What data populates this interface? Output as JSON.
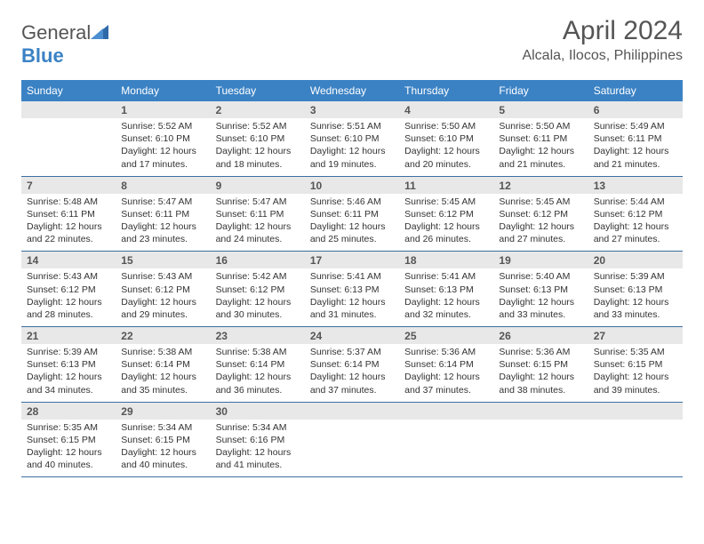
{
  "logo": {
    "text1": "General",
    "text2": "Blue"
  },
  "title": "April 2024",
  "location": "Alcala, Ilocos, Philippines",
  "day_names": [
    "Sunday",
    "Monday",
    "Tuesday",
    "Wednesday",
    "Thursday",
    "Friday",
    "Saturday"
  ],
  "colors": {
    "header_bg": "#3b82c4",
    "header_text": "#ffffff",
    "daynum_bg": "#e8e8e8",
    "border": "#3b6fa0",
    "text": "#333333",
    "title_text": "#555555"
  },
  "weeks": [
    [
      {
        "n": "",
        "sr": "",
        "ss": "",
        "dl": ""
      },
      {
        "n": "1",
        "sr": "Sunrise: 5:52 AM",
        "ss": "Sunset: 6:10 PM",
        "dl": "Daylight: 12 hours and 17 minutes."
      },
      {
        "n": "2",
        "sr": "Sunrise: 5:52 AM",
        "ss": "Sunset: 6:10 PM",
        "dl": "Daylight: 12 hours and 18 minutes."
      },
      {
        "n": "3",
        "sr": "Sunrise: 5:51 AM",
        "ss": "Sunset: 6:10 PM",
        "dl": "Daylight: 12 hours and 19 minutes."
      },
      {
        "n": "4",
        "sr": "Sunrise: 5:50 AM",
        "ss": "Sunset: 6:10 PM",
        "dl": "Daylight: 12 hours and 20 minutes."
      },
      {
        "n": "5",
        "sr": "Sunrise: 5:50 AM",
        "ss": "Sunset: 6:11 PM",
        "dl": "Daylight: 12 hours and 21 minutes."
      },
      {
        "n": "6",
        "sr": "Sunrise: 5:49 AM",
        "ss": "Sunset: 6:11 PM",
        "dl": "Daylight: 12 hours and 21 minutes."
      }
    ],
    [
      {
        "n": "7",
        "sr": "Sunrise: 5:48 AM",
        "ss": "Sunset: 6:11 PM",
        "dl": "Daylight: 12 hours and 22 minutes."
      },
      {
        "n": "8",
        "sr": "Sunrise: 5:47 AM",
        "ss": "Sunset: 6:11 PM",
        "dl": "Daylight: 12 hours and 23 minutes."
      },
      {
        "n": "9",
        "sr": "Sunrise: 5:47 AM",
        "ss": "Sunset: 6:11 PM",
        "dl": "Daylight: 12 hours and 24 minutes."
      },
      {
        "n": "10",
        "sr": "Sunrise: 5:46 AM",
        "ss": "Sunset: 6:11 PM",
        "dl": "Daylight: 12 hours and 25 minutes."
      },
      {
        "n": "11",
        "sr": "Sunrise: 5:45 AM",
        "ss": "Sunset: 6:12 PM",
        "dl": "Daylight: 12 hours and 26 minutes."
      },
      {
        "n": "12",
        "sr": "Sunrise: 5:45 AM",
        "ss": "Sunset: 6:12 PM",
        "dl": "Daylight: 12 hours and 27 minutes."
      },
      {
        "n": "13",
        "sr": "Sunrise: 5:44 AM",
        "ss": "Sunset: 6:12 PM",
        "dl": "Daylight: 12 hours and 27 minutes."
      }
    ],
    [
      {
        "n": "14",
        "sr": "Sunrise: 5:43 AM",
        "ss": "Sunset: 6:12 PM",
        "dl": "Daylight: 12 hours and 28 minutes."
      },
      {
        "n": "15",
        "sr": "Sunrise: 5:43 AM",
        "ss": "Sunset: 6:12 PM",
        "dl": "Daylight: 12 hours and 29 minutes."
      },
      {
        "n": "16",
        "sr": "Sunrise: 5:42 AM",
        "ss": "Sunset: 6:12 PM",
        "dl": "Daylight: 12 hours and 30 minutes."
      },
      {
        "n": "17",
        "sr": "Sunrise: 5:41 AM",
        "ss": "Sunset: 6:13 PM",
        "dl": "Daylight: 12 hours and 31 minutes."
      },
      {
        "n": "18",
        "sr": "Sunrise: 5:41 AM",
        "ss": "Sunset: 6:13 PM",
        "dl": "Daylight: 12 hours and 32 minutes."
      },
      {
        "n": "19",
        "sr": "Sunrise: 5:40 AM",
        "ss": "Sunset: 6:13 PM",
        "dl": "Daylight: 12 hours and 33 minutes."
      },
      {
        "n": "20",
        "sr": "Sunrise: 5:39 AM",
        "ss": "Sunset: 6:13 PM",
        "dl": "Daylight: 12 hours and 33 minutes."
      }
    ],
    [
      {
        "n": "21",
        "sr": "Sunrise: 5:39 AM",
        "ss": "Sunset: 6:13 PM",
        "dl": "Daylight: 12 hours and 34 minutes."
      },
      {
        "n": "22",
        "sr": "Sunrise: 5:38 AM",
        "ss": "Sunset: 6:14 PM",
        "dl": "Daylight: 12 hours and 35 minutes."
      },
      {
        "n": "23",
        "sr": "Sunrise: 5:38 AM",
        "ss": "Sunset: 6:14 PM",
        "dl": "Daylight: 12 hours and 36 minutes."
      },
      {
        "n": "24",
        "sr": "Sunrise: 5:37 AM",
        "ss": "Sunset: 6:14 PM",
        "dl": "Daylight: 12 hours and 37 minutes."
      },
      {
        "n": "25",
        "sr": "Sunrise: 5:36 AM",
        "ss": "Sunset: 6:14 PM",
        "dl": "Daylight: 12 hours and 37 minutes."
      },
      {
        "n": "26",
        "sr": "Sunrise: 5:36 AM",
        "ss": "Sunset: 6:15 PM",
        "dl": "Daylight: 12 hours and 38 minutes."
      },
      {
        "n": "27",
        "sr": "Sunrise: 5:35 AM",
        "ss": "Sunset: 6:15 PM",
        "dl": "Daylight: 12 hours and 39 minutes."
      }
    ],
    [
      {
        "n": "28",
        "sr": "Sunrise: 5:35 AM",
        "ss": "Sunset: 6:15 PM",
        "dl": "Daylight: 12 hours and 40 minutes."
      },
      {
        "n": "29",
        "sr": "Sunrise: 5:34 AM",
        "ss": "Sunset: 6:15 PM",
        "dl": "Daylight: 12 hours and 40 minutes."
      },
      {
        "n": "30",
        "sr": "Sunrise: 5:34 AM",
        "ss": "Sunset: 6:16 PM",
        "dl": "Daylight: 12 hours and 41 minutes."
      },
      {
        "n": "",
        "sr": "",
        "ss": "",
        "dl": ""
      },
      {
        "n": "",
        "sr": "",
        "ss": "",
        "dl": ""
      },
      {
        "n": "",
        "sr": "",
        "ss": "",
        "dl": ""
      },
      {
        "n": "",
        "sr": "",
        "ss": "",
        "dl": ""
      }
    ]
  ]
}
